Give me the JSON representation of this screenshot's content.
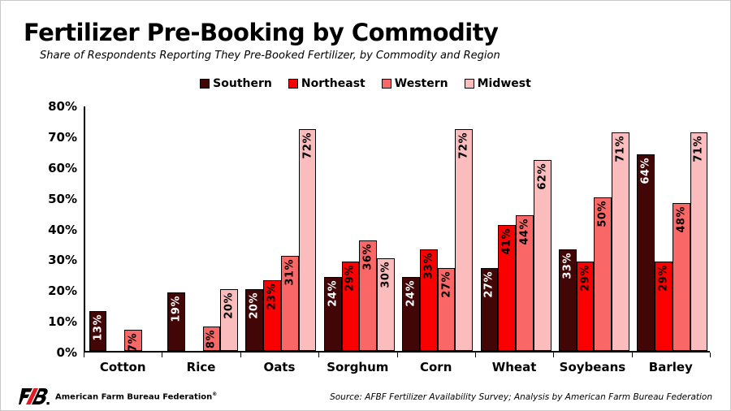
{
  "header": {
    "title": "Fertilizer Pre-Booking by Commodity",
    "subtitle": "Share of Respondents Reporting They Pre-Booked Fertilizer, by Commodity and Region"
  },
  "chart_data": {
    "type": "bar",
    "title": "Fertilizer Pre-Booking by Commodity",
    "categories": [
      "Cotton",
      "Rice",
      "Oats",
      "Sorghum",
      "Corn",
      "Wheat",
      "Soybeans",
      "Barley"
    ],
    "series": [
      {
        "name": "Southern",
        "color": "#420607",
        "label_color": "#ffffff",
        "values": [
          13,
          19,
          20,
          24,
          24,
          27,
          33,
          64
        ]
      },
      {
        "name": "Northeast",
        "color": "#fb0000",
        "label_color": "#000000",
        "values": [
          null,
          null,
          23,
          29,
          33,
          41,
          29,
          29
        ]
      },
      {
        "name": "Western",
        "color": "#f96767",
        "label_color": "#000000",
        "values": [
          7,
          8,
          31,
          36,
          27,
          44,
          50,
          48
        ]
      },
      {
        "name": "Midwest",
        "color": "#fbbcbd",
        "label_color": "#000000",
        "values": [
          null,
          20,
          72,
          30,
          72,
          62,
          71,
          71
        ]
      }
    ],
    "value_suffix": "%",
    "ylim": [
      0,
      80
    ],
    "ytick_step": 10,
    "ytick_labels": [
      "0%",
      "10%",
      "20%",
      "30%",
      "40%",
      "50%",
      "60%",
      "70%",
      "80%"
    ],
    "grid": false,
    "legend_position": "top",
    "xlabel": "",
    "ylabel": ""
  },
  "footer": {
    "brand": "American Farm Bureau Federation",
    "registered": "®",
    "source": "Source: AFBF Fertilizer Availability Survey; Analysis by American Farm Bureau Federation"
  },
  "colors": {
    "brand_red": "#e31b23",
    "axis": "#000000",
    "background": "#ffffff"
  }
}
